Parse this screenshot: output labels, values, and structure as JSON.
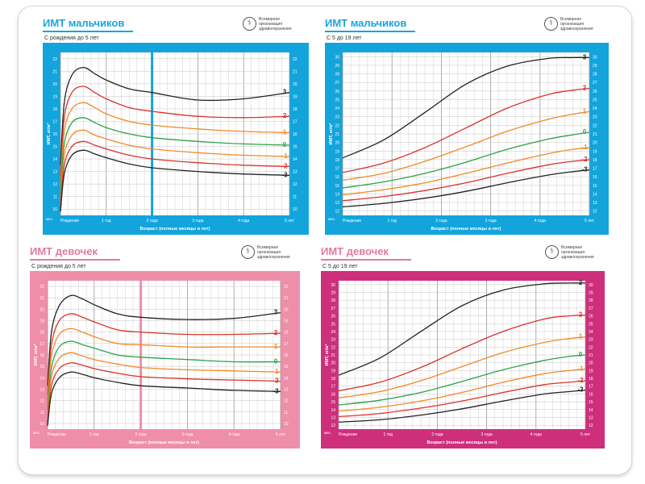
{
  "org": {
    "name_line1": "Всемирная организация",
    "name_line2": "здравоохранения"
  },
  "axis_unit_label": "мес.",
  "colors": {
    "boys": "#13a4dc",
    "girls_light": "#ef8ea9",
    "girls_dark": "#cd2f7c",
    "boys_title": "#1aa5d9",
    "girls_title": "#e27aa0"
  },
  "line_colors": {
    "3": "#222222",
    "2": "#d9322b",
    "1": "#f08a25",
    "0": "#2aa24a",
    "-1": "#f08a25",
    "-2": "#d9322b",
    "-3": "#222222"
  },
  "panels": [
    {
      "title": "ИМТ мальчиков",
      "subtitle": "С рождения до 5 лет",
      "ylabel": "ИМТ, кг/м²",
      "xlabel": "Возраст (полные месяцы и лет)",
      "age_labels": [
        "Рождение",
        "1 год",
        "2 года",
        "3 года",
        "4 года",
        "5 лет"
      ],
      "left_ticks": [
        "22",
        "21",
        "20",
        "19",
        "18",
        "17",
        "16",
        "15",
        "14",
        "13",
        "12",
        "11",
        "10"
      ],
      "right_ticks": [
        "22",
        "21",
        "20",
        "19",
        "18",
        "17",
        "16",
        "15",
        "14",
        "13",
        "12",
        "11",
        "10"
      ],
      "chart_data": {
        "type": "line",
        "xlim": [
          0,
          60
        ],
        "ylim": [
          9.5,
          22.5
        ],
        "series": [
          {
            "name": "3",
            "x": [
              0,
              1,
              3,
              6,
              9,
              12,
              18,
              24,
              36,
              48,
              60
            ],
            "values": [
              13.5,
              18.5,
              20.7,
              21.3,
              20.8,
              20.3,
              19.6,
              19.3,
              18.7,
              18.8,
              19.3
            ]
          },
          {
            "name": "2",
            "x": [
              0,
              1,
              3,
              6,
              9,
              12,
              18,
              24,
              36,
              48,
              60
            ],
            "values": [
              12.6,
              17.3,
              19.3,
              19.8,
              19.3,
              18.8,
              18.1,
              17.8,
              17.4,
              17.3,
              17.4
            ]
          },
          {
            "name": "1",
            "x": [
              0,
              1,
              3,
              6,
              9,
              12,
              18,
              24,
              36,
              48,
              60
            ],
            "values": [
              12.0,
              16.2,
              18.0,
              18.5,
              18.1,
              17.6,
              17.0,
              16.7,
              16.4,
              16.2,
              16.1
            ]
          },
          {
            "name": "0",
            "x": [
              0,
              1,
              3,
              6,
              9,
              12,
              18,
              24,
              36,
              48,
              60
            ],
            "values": [
              11.2,
              15.2,
              16.9,
              17.3,
              16.9,
              16.5,
              16.0,
              15.7,
              15.4,
              15.2,
              15.1
            ]
          },
          {
            "name": "-1",
            "x": [
              0,
              1,
              3,
              6,
              9,
              12,
              18,
              24,
              36,
              48,
              60
            ],
            "values": [
              10.6,
              14.3,
              15.9,
              16.3,
              15.9,
              15.6,
              15.1,
              14.8,
              14.5,
              14.3,
              14.2
            ]
          },
          {
            "name": "-2",
            "x": [
              0,
              1,
              3,
              6,
              9,
              12,
              18,
              24,
              36,
              48,
              60
            ],
            "values": [
              10.1,
              13.5,
              15.0,
              15.4,
              15.1,
              14.8,
              14.3,
              14.0,
              13.7,
              13.5,
              13.4
            ]
          },
          {
            "name": "-3",
            "x": [
              0,
              1,
              3,
              6,
              9,
              12,
              18,
              24,
              36,
              48,
              60
            ],
            "values": [
              9.8,
              12.8,
              14.3,
              14.7,
              14.4,
              14.1,
              13.6,
              13.3,
              13.0,
              12.8,
              12.7
            ]
          }
        ]
      }
    },
    {
      "title": "ИМТ мальчиков",
      "subtitle": "С 5 до 19 лет",
      "ylabel": "ИМТ, кг/м²",
      "xlabel": "Возраст (полные месяцы и лет)",
      "age_labels": [
        "Рождение",
        "1 год",
        "2 года",
        "3 года",
        "4 года",
        "5 лет"
      ],
      "left_ticks": [
        "30",
        "29",
        "28",
        "27",
        "26",
        "25",
        "24",
        "23",
        "22",
        "21",
        "20",
        "19",
        "18",
        "17",
        "16",
        "15",
        "14",
        "13",
        "12"
      ],
      "right_ticks": [
        "30",
        "29",
        "28",
        "27",
        "26",
        "25",
        "24",
        "23",
        "22",
        "21",
        "20",
        "19",
        "18",
        "17",
        "16",
        "15",
        "14",
        "13",
        "12"
      ],
      "chart_data": {
        "type": "line",
        "xlim": [
          0,
          60
        ],
        "ylim": [
          11.5,
          30.5
        ],
        "series": [
          {
            "name": "3",
            "x": [
              0,
              10,
              20,
              30,
              40,
              50,
              56,
              60
            ],
            "values": [
              18.2,
              20.3,
              23.5,
              26.8,
              28.9,
              29.8,
              29.9,
              29.9
            ]
          },
          {
            "name": "2",
            "x": [
              0,
              10,
              20,
              30,
              40,
              50,
              56,
              60
            ],
            "values": [
              16.5,
              17.6,
              19.4,
              21.7,
              24.0,
              25.6,
              26.1,
              26.3
            ]
          },
          {
            "name": "1",
            "x": [
              0,
              10,
              20,
              30,
              40,
              50,
              56,
              60
            ],
            "values": [
              15.6,
              16.4,
              17.8,
              19.5,
              21.3,
              22.7,
              23.3,
              23.6
            ]
          },
          {
            "name": "0",
            "x": [
              0,
              10,
              20,
              30,
              40,
              50,
              56,
              60
            ],
            "values": [
              14.7,
              15.4,
              16.4,
              17.7,
              19.2,
              20.4,
              20.9,
              21.2
            ]
          },
          {
            "name": "-1",
            "x": [
              0,
              10,
              20,
              30,
              40,
              50,
              56,
              60
            ],
            "values": [
              13.9,
              14.5,
              15.3,
              16.4,
              17.6,
              18.7,
              19.2,
              19.4
            ]
          },
          {
            "name": "-2",
            "x": [
              0,
              10,
              20,
              30,
              40,
              50,
              56,
              60
            ],
            "values": [
              13.2,
              13.7,
              14.4,
              15.3,
              16.4,
              17.4,
              17.8,
              18.0
            ]
          },
          {
            "name": "-3",
            "x": [
              0,
              10,
              20,
              30,
              40,
              50,
              56,
              60
            ],
            "values": [
              12.5,
              12.9,
              13.5,
              14.3,
              15.3,
              16.2,
              16.6,
              16.8
            ]
          }
        ]
      }
    },
    {
      "title": "ИМТ девочек",
      "subtitle": "С рождения до 5 лет",
      "ylabel": "ИМТ, кг/м²",
      "xlabel": "Возраст (полные месяцы и лет)",
      "age_labels": [
        "Рождение",
        "1 год",
        "2 года",
        "3 года",
        "4 года",
        "5 лет"
      ],
      "left_ticks": [
        "22",
        "21",
        "20",
        "19",
        "18",
        "17",
        "16",
        "15",
        "14",
        "13",
        "12",
        "11",
        "10"
      ],
      "right_ticks": [
        "22",
        "21",
        "20",
        "19",
        "18",
        "17",
        "16",
        "15",
        "14",
        "13",
        "12",
        "11",
        "10"
      ],
      "chart_data": {
        "type": "line",
        "xlim": [
          0,
          60
        ],
        "ylim": [
          9.5,
          22.5
        ],
        "series": [
          {
            "name": "3",
            "x": [
              0,
              1,
              3,
              6,
              9,
              12,
              18,
              24,
              36,
              48,
              60
            ],
            "values": [
              13.3,
              18.0,
              20.3,
              21.2,
              20.9,
              20.4,
              19.6,
              19.3,
              19.1,
              19.2,
              19.7
            ]
          },
          {
            "name": "2",
            "x": [
              0,
              1,
              3,
              6,
              9,
              12,
              18,
              24,
              36,
              48,
              60
            ],
            "values": [
              12.5,
              16.9,
              19.0,
              19.6,
              19.3,
              18.9,
              18.2,
              18.0,
              17.8,
              17.8,
              17.9
            ]
          },
          {
            "name": "1",
            "x": [
              0,
              1,
              3,
              6,
              9,
              12,
              18,
              24,
              36,
              48,
              60
            ],
            "values": [
              11.9,
              15.9,
              17.8,
              18.3,
              18.0,
              17.6,
              17.0,
              16.9,
              16.7,
              16.7,
              16.7
            ]
          },
          {
            "name": "0",
            "x": [
              0,
              1,
              3,
              6,
              9,
              12,
              18,
              24,
              36,
              48,
              60
            ],
            "values": [
              11.2,
              14.9,
              16.7,
              17.2,
              16.9,
              16.6,
              16.0,
              15.8,
              15.6,
              15.4,
              15.4
            ]
          },
          {
            "name": "-1",
            "x": [
              0,
              1,
              3,
              6,
              9,
              12,
              18,
              24,
              36,
              48,
              60
            ],
            "values": [
              10.6,
              14.1,
              15.7,
              16.2,
              15.9,
              15.6,
              15.2,
              14.9,
              14.7,
              14.6,
              14.5
            ]
          },
          {
            "name": "-2",
            "x": [
              0,
              1,
              3,
              6,
              9,
              12,
              18,
              24,
              36,
              48,
              60
            ],
            "values": [
              10.1,
              13.3,
              14.8,
              15.3,
              15.1,
              14.8,
              14.4,
              14.1,
              13.9,
              13.8,
              13.7
            ]
          },
          {
            "name": "-3",
            "x": [
              0,
              1,
              3,
              6,
              9,
              12,
              18,
              24,
              36,
              48,
              60
            ],
            "values": [
              9.8,
              12.6,
              14.0,
              14.5,
              14.3,
              14.0,
              13.6,
              13.3,
              13.1,
              12.9,
              12.8
            ]
          }
        ]
      }
    },
    {
      "title": "ИМТ девочек",
      "subtitle": "С 5 до 19 лет",
      "ylabel": "ИМТ, кг/м²",
      "xlabel": "Возраст (полные месяцы и лет)",
      "age_labels": [
        "Рождение",
        "1 год",
        "2 года",
        "3 года",
        "4 года",
        "5 лет"
      ],
      "left_ticks": [
        "30",
        "29",
        "28",
        "27",
        "26",
        "25",
        "24",
        "23",
        "22",
        "21",
        "20",
        "19",
        "18",
        "17",
        "16",
        "15",
        "14",
        "13",
        "12"
      ],
      "right_ticks": [
        "30",
        "29",
        "28",
        "27",
        "26",
        "25",
        "24",
        "23",
        "22",
        "21",
        "20",
        "19",
        "18",
        "17",
        "16",
        "15",
        "14",
        "13",
        "12"
      ],
      "chart_data": {
        "type": "line",
        "xlim": [
          0,
          60
        ],
        "ylim": [
          11.5,
          30.5
        ],
        "series": [
          {
            "name": "3",
            "x": [
              0,
              10,
              20,
              30,
              40,
              50,
              56,
              60
            ],
            "values": [
              18.4,
              20.6,
              24.0,
              27.3,
              29.3,
              30.1,
              30.2,
              30.2
            ]
          },
          {
            "name": "2",
            "x": [
              0,
              10,
              20,
              30,
              40,
              50,
              56,
              60
            ],
            "values": [
              16.4,
              17.5,
              19.4,
              21.8,
              24.0,
              25.6,
              26.0,
              26.1
            ]
          },
          {
            "name": "1",
            "x": [
              0,
              10,
              20,
              30,
              40,
              50,
              56,
              60
            ],
            "values": [
              15.5,
              16.3,
              17.7,
              19.5,
              21.3,
              22.6,
              23.1,
              23.3
            ]
          },
          {
            "name": "0",
            "x": [
              0,
              10,
              20,
              30,
              40,
              50,
              56,
              60
            ],
            "values": [
              14.6,
              15.2,
              16.2,
              17.6,
              19.1,
              20.3,
              20.8,
              21.0
            ]
          },
          {
            "name": "-1",
            "x": [
              0,
              10,
              20,
              30,
              40,
              50,
              56,
              60
            ],
            "values": [
              13.8,
              14.3,
              15.1,
              16.2,
              17.5,
              18.6,
              19.0,
              19.2
            ]
          },
          {
            "name": "-2",
            "x": [
              0,
              10,
              20,
              30,
              40,
              50,
              56,
              60
            ],
            "values": [
              13.1,
              13.5,
              14.2,
              15.1,
              16.2,
              17.2,
              17.5,
              17.7
            ]
          },
          {
            "name": "-3",
            "x": [
              0,
              10,
              20,
              30,
              40,
              50,
              56,
              60
            ],
            "values": [
              12.4,
              12.7,
              13.3,
              14.1,
              15.1,
              16.0,
              16.3,
              16.5
            ]
          }
        ]
      }
    }
  ]
}
